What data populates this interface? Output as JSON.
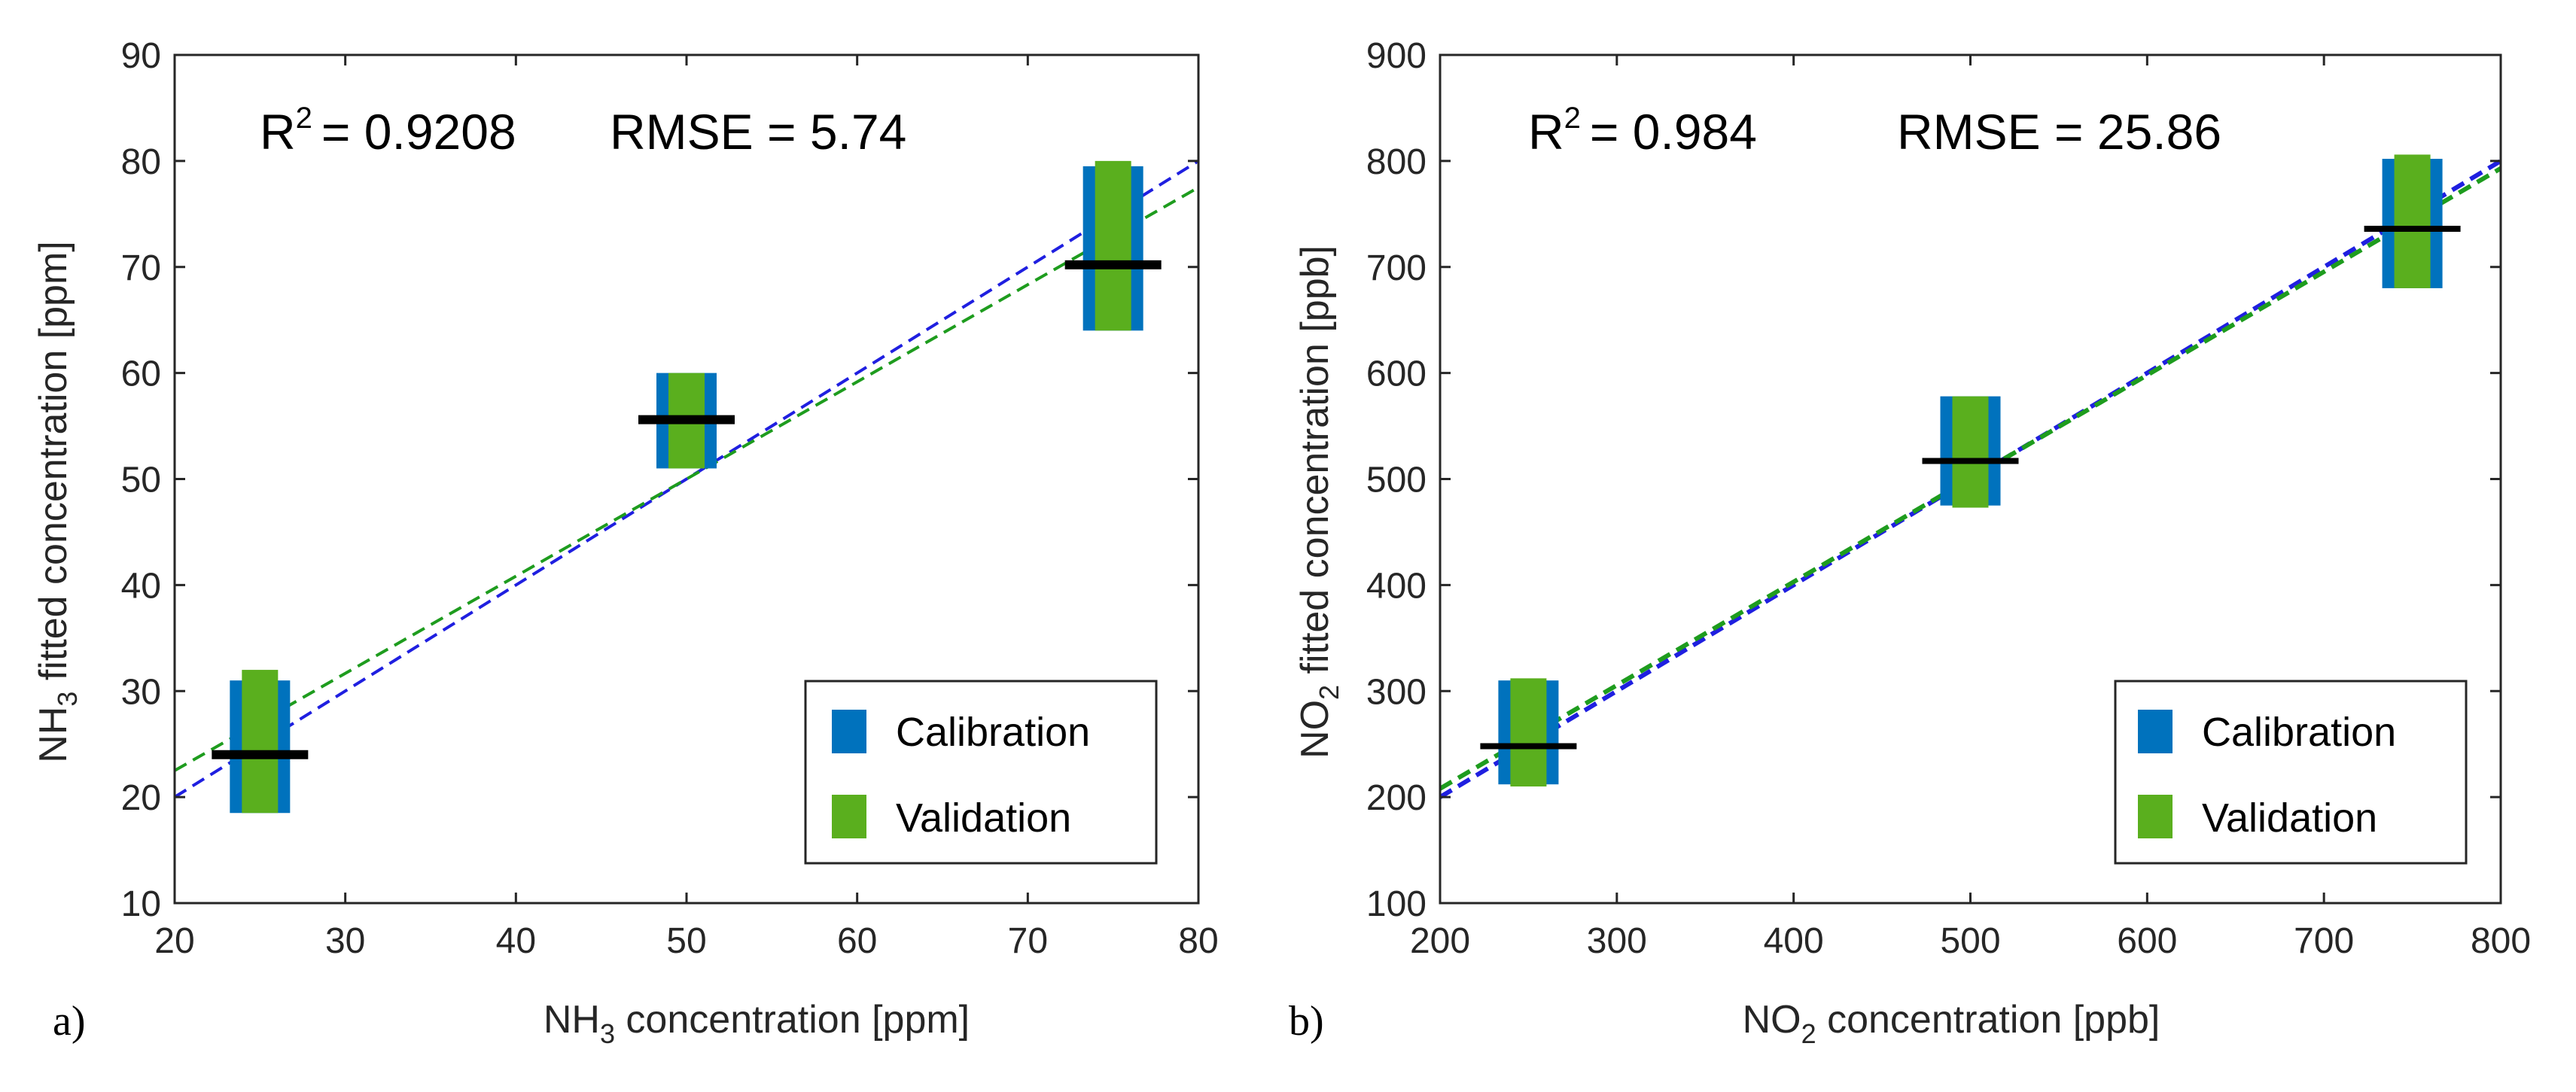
{
  "colors": {
    "calibration": "#0072BD",
    "validation": "#5AAF1E",
    "mean_bar": "#000000",
    "calibration_fit": "#1F1FE0",
    "validation_fit": "#1E9C1E",
    "axis": "#262626"
  },
  "chart_data": [
    {
      "type": "box-range",
      "panel_label": "a)",
      "stats": {
        "r2_base": "R",
        "r2_sup": "2",
        "r2_value": "= 0.9208",
        "rmse": "RMSE = 5.74"
      },
      "xlabel": {
        "pre": "NH",
        "sub": "3",
        "post": " concentration [ppm]"
      },
      "ylabel": {
        "pre": "NH",
        "sub": "3",
        "post": " fitted concentration [ppm]"
      },
      "xlim": [
        20,
        80
      ],
      "ylim": [
        10,
        90
      ],
      "xticks": [
        "20",
        "30",
        "40",
        "50",
        "60",
        "70",
        "80"
      ],
      "yticks": [
        "10",
        "20",
        "30",
        "40",
        "50",
        "60",
        "70",
        "80",
        "90"
      ],
      "legend": {
        "position": "bottom-right",
        "entries": [
          "Calibration",
          "Validation"
        ]
      },
      "series": [
        {
          "name": "Calibration",
          "points": [
            {
              "x": 25,
              "low": 18.5,
              "high": 31,
              "mean": 24
            },
            {
              "x": 50,
              "low": 51,
              "high": 60,
              "mean": 55.6
            },
            {
              "x": 75,
              "low": 64,
              "high": 79.5,
              "mean": 70.2
            }
          ]
        },
        {
          "name": "Validation",
          "points": [
            {
              "x": 25,
              "low": 18.5,
              "high": 32,
              "mean": 24
            },
            {
              "x": 50,
              "low": 51,
              "high": 60,
              "mean": 55.6
            },
            {
              "x": 75,
              "low": 64,
              "high": 80,
              "mean": 70.2
            }
          ]
        }
      ],
      "fit_lines": [
        {
          "name": "Calibration fit",
          "x": [
            20,
            80
          ],
          "y": [
            20,
            80
          ]
        },
        {
          "name": "Validation fit",
          "x": [
            20,
            80
          ],
          "y": [
            22.5,
            77.5
          ]
        }
      ]
    },
    {
      "type": "box-range",
      "panel_label": "b)",
      "stats": {
        "r2_base": "R",
        "r2_sup": "2",
        "r2_value": "= 0.984",
        "rmse": "RMSE = 25.86"
      },
      "xlabel": {
        "pre": "NO",
        "sub": "2",
        "post": " concentration [ppb]"
      },
      "ylabel": {
        "pre": "NO",
        "sub": "2",
        "post": " fitted concentration [ppb]"
      },
      "xlim": [
        200,
        800
      ],
      "ylim": [
        100,
        900
      ],
      "xticks": [
        "200",
        "300",
        "400",
        "500",
        "600",
        "700",
        "800"
      ],
      "yticks": [
        "100",
        "200",
        "300",
        "400",
        "500",
        "600",
        "700",
        "800",
        "900"
      ],
      "legend": {
        "position": "bottom-right",
        "entries": [
          "Calibration",
          "Validation"
        ]
      },
      "series": [
        {
          "name": "Calibration",
          "points": [
            {
              "x": 250,
              "low": 212,
              "high": 310,
              "mean": 248
            },
            {
              "x": 500,
              "low": 475,
              "high": 578,
              "mean": 517
            },
            {
              "x": 750,
              "low": 680,
              "high": 802,
              "mean": 736
            }
          ]
        },
        {
          "name": "Validation",
          "points": [
            {
              "x": 250,
              "low": 210,
              "high": 312,
              "mean": 248
            },
            {
              "x": 500,
              "low": 473,
              "high": 578,
              "mean": 517
            },
            {
              "x": 750,
              "low": 680,
              "high": 806,
              "mean": 736
            }
          ]
        }
      ],
      "fit_lines": [
        {
          "name": "Calibration fit",
          "x": [
            200,
            800
          ],
          "y": [
            200,
            800
          ]
        },
        {
          "name": "Validation fit",
          "x": [
            200,
            800
          ],
          "y": [
            208,
            793
          ]
        }
      ]
    }
  ]
}
